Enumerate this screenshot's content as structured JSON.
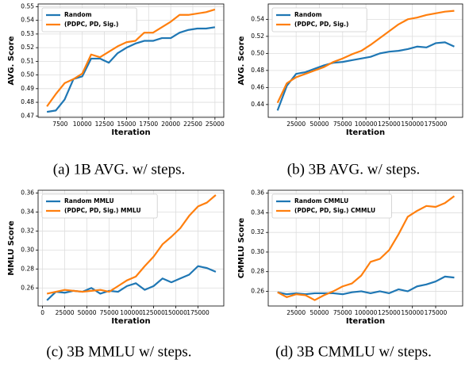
{
  "chart_data": [
    {
      "type": "line",
      "caption": "(a) 1B AVG. w/ steps.",
      "xlabel": "Iteration",
      "ylabel": "AVG. Score",
      "x": [
        6000,
        7000,
        8000,
        9000,
        10000,
        11000,
        12000,
        13000,
        14000,
        15000,
        16000,
        17000,
        18000,
        19000,
        20000,
        21000,
        22000,
        23000,
        24000,
        25000
      ],
      "series": [
        {
          "name": "Random",
          "color": "#1f77b4",
          "values": [
            0.473,
            0.474,
            0.482,
            0.497,
            0.499,
            0.512,
            0.512,
            0.509,
            0.516,
            0.52,
            0.523,
            0.525,
            0.525,
            0.527,
            0.527,
            0.531,
            0.533,
            0.534,
            0.534,
            0.535
          ]
        },
        {
          "name": "(PDPC, PD, Sig.)",
          "color": "#ff7f0e",
          "values": [
            0.477,
            0.486,
            0.494,
            0.497,
            0.501,
            0.515,
            0.513,
            0.517,
            0.521,
            0.524,
            0.525,
            0.531,
            0.531,
            0.535,
            0.539,
            0.544,
            0.544,
            0.545,
            0.546,
            0.548
          ]
        }
      ],
      "xlim": [
        5000,
        26000
      ],
      "xticks": [
        7500,
        10000,
        12500,
        15000,
        17500,
        20000,
        22500,
        25000
      ],
      "ylim": [
        0.469,
        0.552
      ],
      "yticks": [
        0.47,
        0.48,
        0.49,
        {
          "value": 0.5,
          "label": "0.50"
        },
        0.51,
        0.52,
        0.53,
        0.54,
        0.55
      ],
      "grid": true,
      "legend": "upper-left"
    },
    {
      "type": "line",
      "caption": "(b) 3B AVG. w/ steps.",
      "xlabel": "Iteration",
      "ylabel": "AVG. Score",
      "x": [
        5000,
        15000,
        25000,
        35000,
        45000,
        55000,
        65000,
        75000,
        85000,
        95000,
        105000,
        115000,
        125000,
        135000,
        145000,
        155000,
        165000,
        175000,
        185000,
        195000
      ],
      "series": [
        {
          "name": "Random",
          "color": "#1f77b4",
          "values": [
            0.433,
            0.462,
            0.476,
            0.478,
            0.482,
            0.486,
            0.489,
            0.49,
            0.492,
            0.494,
            0.496,
            0.5,
            0.502,
            0.503,
            0.505,
            0.508,
            0.507,
            0.512,
            0.513,
            0.508
          ]
        },
        {
          "name": "(PDPC, PD, Sig.)",
          "color": "#ff7f0e",
          "values": [
            0.442,
            0.465,
            0.472,
            0.476,
            0.48,
            0.484,
            0.49,
            0.494,
            0.499,
            0.503,
            0.51,
            0.518,
            0.526,
            0.534,
            0.54,
            0.542,
            0.545,
            0.547,
            0.549,
            0.55
          ]
        }
      ],
      "xlim": [
        -5000,
        204000
      ],
      "xticks": [
        25000,
        50000,
        75000,
        100000,
        125000,
        150000,
        175000
      ],
      "ylim": [
        0.425,
        0.558
      ],
      "yticks": [
        0.44,
        0.46,
        0.48,
        {
          "value": 0.5,
          "label": "0.50"
        },
        0.52,
        0.54
      ],
      "grid": true,
      "legend": "upper-left"
    },
    {
      "type": "line",
      "caption": "(c) 3B MMLU w/ steps.",
      "xlabel": "Iteration",
      "ylabel": "MMLU Score",
      "x": [
        5000,
        15000,
        25000,
        35000,
        45000,
        55000,
        65000,
        75000,
        85000,
        95000,
        105000,
        115000,
        125000,
        135000,
        145000,
        155000,
        165000,
        175000,
        185000,
        195000
      ],
      "series": [
        {
          "name": "Random MMLU",
          "color": "#1f77b4",
          "values": [
            0.247,
            0.256,
            0.255,
            0.257,
            0.256,
            0.26,
            0.254,
            0.257,
            0.256,
            0.262,
            0.265,
            0.258,
            0.262,
            0.27,
            0.266,
            0.27,
            0.274,
            0.283,
            0.281,
            0.277
          ]
        },
        {
          "name": "(PDPC, PD, Sig.) MMLU",
          "color": "#ff7f0e",
          "values": [
            0.254,
            0.256,
            0.258,
            0.257,
            0.256,
            0.257,
            0.258,
            0.256,
            0.262,
            0.268,
            0.272,
            0.283,
            0.293,
            0.306,
            0.314,
            0.323,
            0.336,
            0.346,
            0.35,
            0.358
          ]
        }
      ],
      "xlim": [
        -5000,
        204000
      ],
      "xticks": [
        0,
        25000,
        50000,
        75000,
        100000,
        125000,
        150000,
        175000
      ],
      "ylim": [
        0.241,
        0.363
      ],
      "yticks": [
        0.26,
        0.28,
        {
          "value": 0.3,
          "label": "0.30"
        },
        0.32,
        0.34,
        0.36
      ],
      "grid": true,
      "legend": "upper-left"
    },
    {
      "type": "line",
      "caption": "(d) 3B CMMLU w/ steps.",
      "xlabel": "Iteration",
      "ylabel": "CMMLU Score",
      "x": [
        5000,
        15000,
        25000,
        35000,
        45000,
        55000,
        65000,
        75000,
        85000,
        95000,
        105000,
        115000,
        125000,
        135000,
        145000,
        155000,
        165000,
        175000,
        185000,
        195000
      ],
      "series": [
        {
          "name": "Random CMMLU",
          "color": "#1f77b4",
          "values": [
            0.259,
            0.257,
            0.258,
            0.257,
            0.258,
            0.258,
            0.258,
            0.257,
            0.259,
            0.26,
            0.258,
            0.26,
            0.258,
            0.262,
            0.26,
            0.265,
            0.267,
            0.27,
            0.275,
            0.274
          ]
        },
        {
          "name": "(PDPC, PD, Sig.) CMMLU",
          "color": "#ff7f0e",
          "values": [
            0.259,
            0.254,
            0.257,
            0.256,
            0.251,
            0.256,
            0.26,
            0.265,
            0.268,
            0.276,
            0.29,
            0.293,
            0.302,
            0.318,
            0.336,
            0.342,
            0.347,
            0.346,
            0.35,
            0.357
          ]
        }
      ],
      "xlim": [
        -5000,
        204000
      ],
      "xticks": [
        25000,
        50000,
        75000,
        100000,
        125000,
        150000,
        175000
      ],
      "ylim": [
        0.245,
        0.363
      ],
      "yticks": [
        0.26,
        0.28,
        {
          "value": 0.3,
          "label": "0.30"
        },
        0.32,
        0.34,
        0.36
      ],
      "grid": true,
      "legend": "upper-left"
    }
  ]
}
